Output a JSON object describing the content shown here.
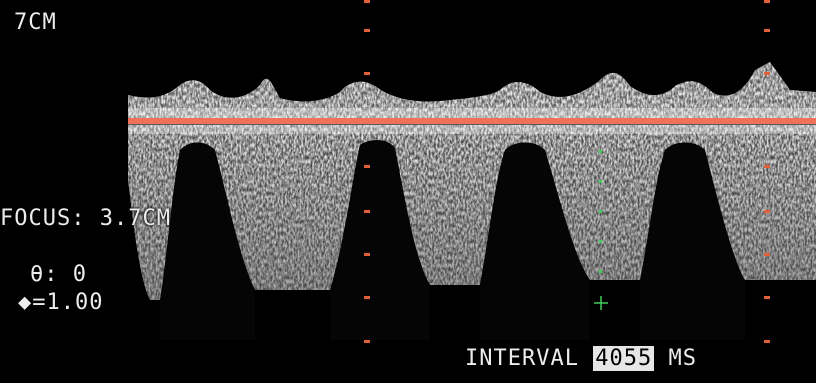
{
  "overlay": {
    "depth": "7CM",
    "focus_label": "FOCUS:",
    "focus_value": "3.7CM",
    "angle_label": "θ:",
    "angle_value": "0",
    "scale_label": "◆=",
    "scale_value": "1.00",
    "interval_label": "INTERVAL",
    "interval_value": "4055",
    "interval_unit": "MS"
  },
  "colors": {
    "baseline": "#f0705a",
    "markers": "#e0603e",
    "caliper": "#3ecf5a",
    "background": "#000000"
  },
  "icons": {
    "caliper": "crosshair-plus-icon"
  }
}
